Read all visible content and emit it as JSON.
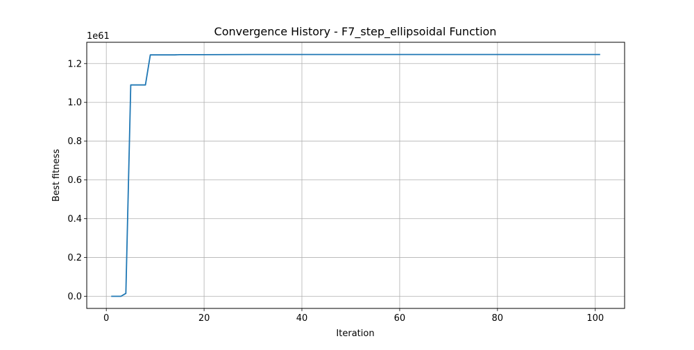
{
  "chart_data": {
    "type": "line",
    "title": "Convergence History - F7_step_ellipsoidal Function",
    "xlabel": "Iteration",
    "ylabel": "Best fitness",
    "y_offset_label": "1e61",
    "xlim": [
      -4,
      106
    ],
    "ylim": [
      -0.0625,
      1.31
    ],
    "x_ticks": [
      0,
      20,
      40,
      60,
      80,
      100
    ],
    "x_tick_labels": [
      "0",
      "20",
      "40",
      "60",
      "80",
      "100"
    ],
    "y_ticks": [
      0.0,
      0.2,
      0.4,
      0.6,
      0.8,
      1.0,
      1.2
    ],
    "y_tick_labels": [
      "0.0",
      "0.2",
      "0.4",
      "0.6",
      "0.8",
      "1.0",
      "1.2"
    ],
    "grid": true,
    "series": [
      {
        "color": "#1f77b4",
        "x": [
          1,
          2,
          3,
          4,
          5,
          6,
          7,
          8,
          9,
          10,
          11,
          12,
          13,
          14,
          15,
          20,
          30,
          40,
          50,
          60,
          70,
          80,
          90,
          100,
          101
        ],
        "y": [
          0.0,
          0.0,
          0.0,
          0.015,
          1.09,
          1.09,
          1.09,
          1.09,
          1.245,
          1.245,
          1.245,
          1.245,
          1.245,
          1.245,
          1.246,
          1.246,
          1.247,
          1.247,
          1.247,
          1.247,
          1.247,
          1.247,
          1.247,
          1.247,
          1.247
        ]
      }
    ]
  }
}
